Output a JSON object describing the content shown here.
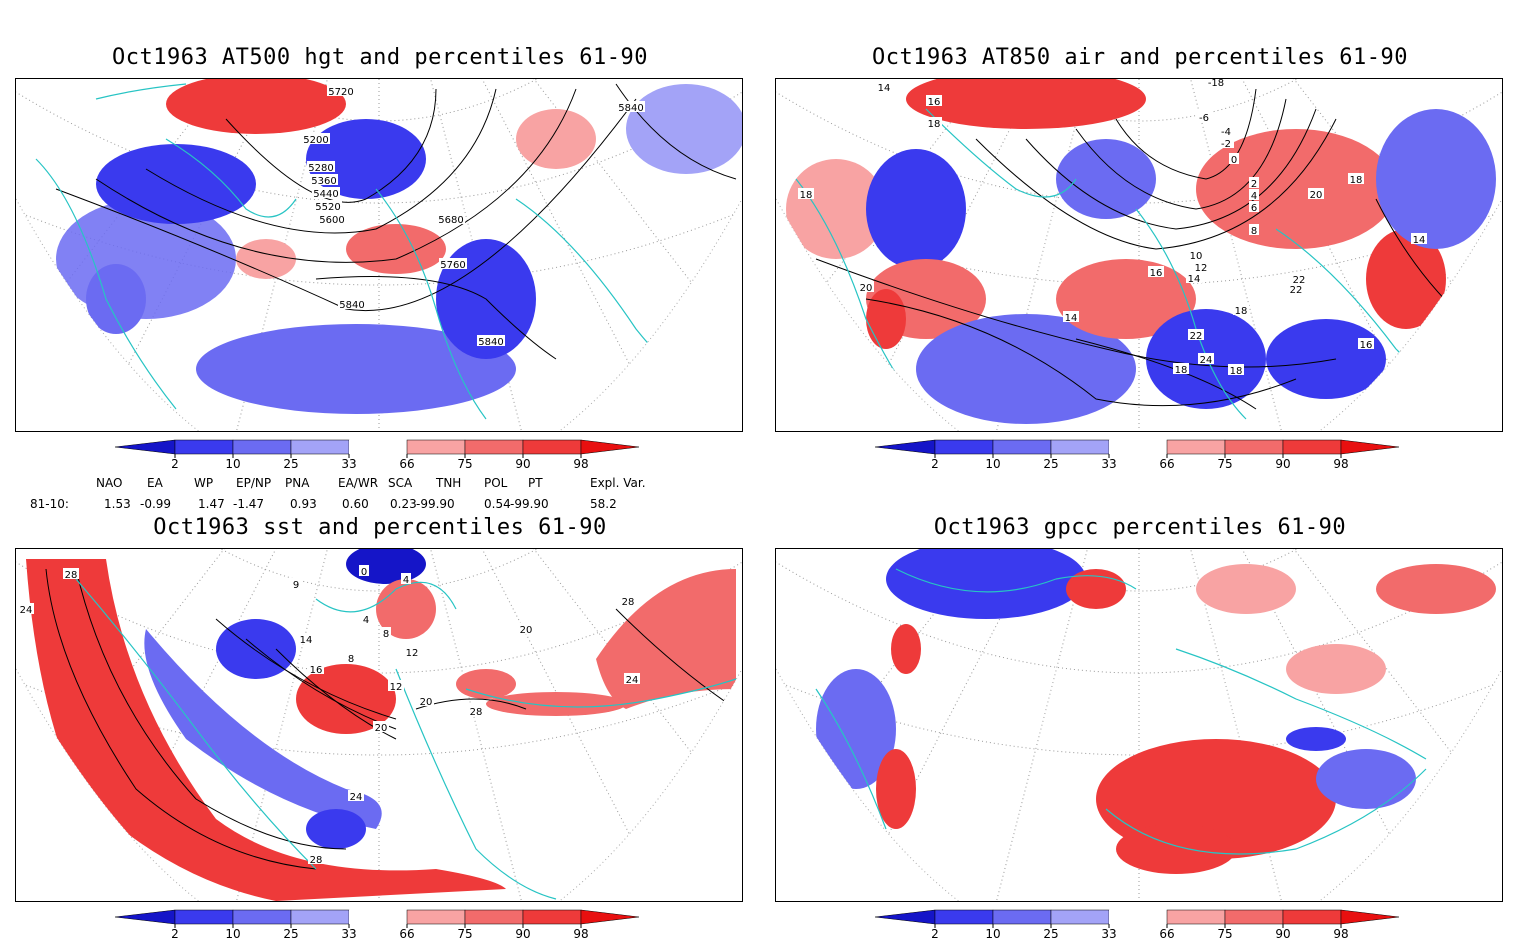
{
  "panels": [
    {
      "title": "Oct1963 AT500 hgt and percentiles 61-90",
      "contour_labels": [
        "5720",
        "5200",
        "5280",
        "5360",
        "5440",
        "5520",
        "5600",
        "5680",
        "5760",
        "5840",
        "5840",
        "5840"
      ]
    },
    {
      "title": "Oct1963 AT850 air and percentiles 61-90",
      "contour_labels": [
        "14",
        "16",
        "18",
        "-18",
        "-6",
        "-4",
        "-2",
        "0",
        "2",
        "4",
        "6",
        "8",
        "10",
        "12",
        "14",
        "16",
        "18",
        "20",
        "22",
        "22",
        "22",
        "24",
        "18",
        "18",
        "14",
        "16",
        "14",
        "18",
        "20",
        "18"
      ]
    },
    {
      "title": "Oct1963 sst and percentiles 61-90",
      "contour_labels": [
        "28",
        "24",
        "0",
        "4",
        "8",
        "9",
        "4",
        "14",
        "16",
        "8",
        "12",
        "12",
        "20",
        "20",
        "24",
        "28",
        "28",
        "20",
        "24",
        "28"
      ]
    },
    {
      "title": "Oct1963 gpcc percentiles 61-90",
      "contour_labels": []
    }
  ],
  "colorbar": {
    "labels": [
      "2",
      "10",
      "25",
      "33",
      "66",
      "75",
      "90",
      "98"
    ],
    "colors": [
      "#1515c8",
      "#3a3aee",
      "#6b6bf2",
      "#a3a3f7",
      "#ffffff",
      "#f8a3a3",
      "#f26b6b",
      "#ee3a3a",
      "#e81010"
    ]
  },
  "indices": {
    "headers": [
      "NAO",
      "EA",
      "WP",
      "EP/NP",
      "PNA",
      "EA/WR",
      "SCA",
      "TNH",
      "POL",
      "PT",
      "Expl. Var."
    ],
    "row_label": "81-10:",
    "values": [
      "1.53",
      "-0.99",
      "1.47",
      "-1.47",
      "0.93",
      "0.60",
      "0.23",
      "-99.90",
      "0.54",
      "-99.90",
      "58.2"
    ]
  },
  "colors": {
    "coast": "#27c4c4",
    "blue_anom": "#5050ee",
    "red_anom": "#f05050"
  }
}
